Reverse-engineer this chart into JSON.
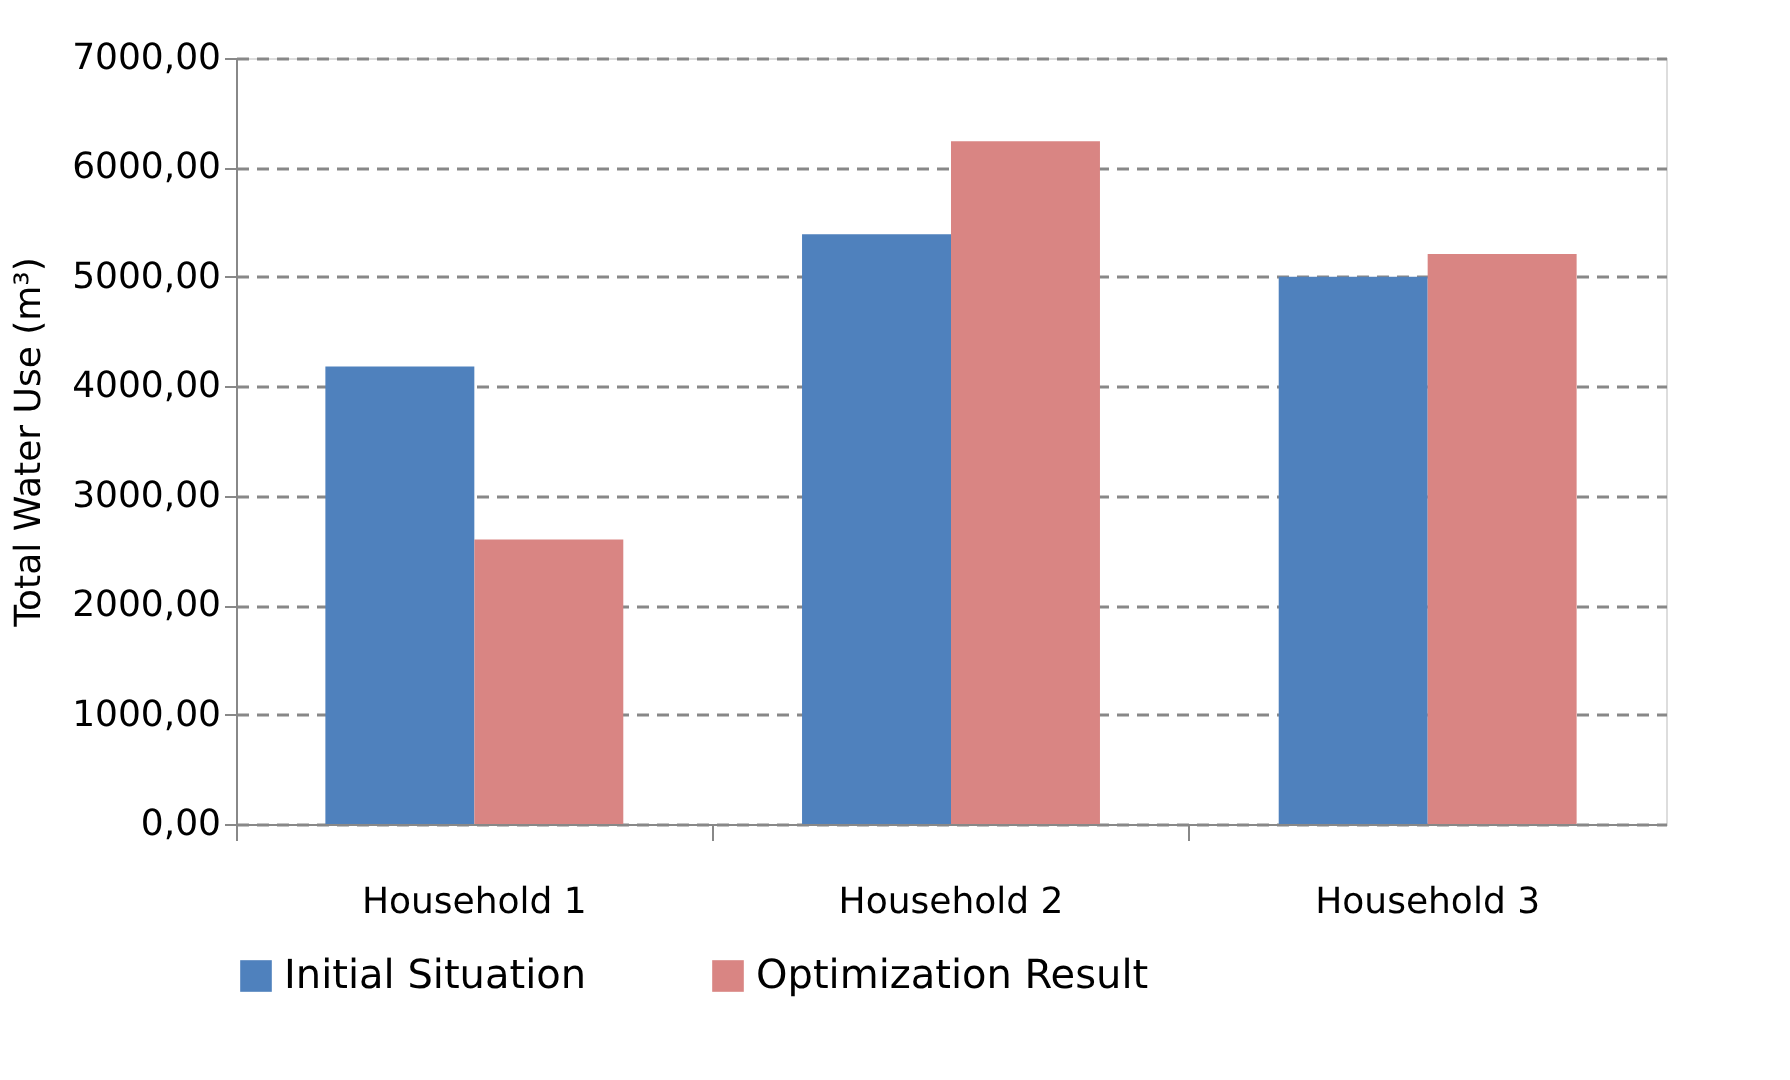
{
  "chart_data": {
    "type": "bar",
    "ylabel": "Total Water Use (m³)",
    "categories": [
      "Household 1",
      "Household 2",
      "Household 3"
    ],
    "series": [
      {
        "name": "Initial Situation",
        "color": "#4f81bd",
        "values": [
          4180,
          5390,
          5000
        ]
      },
      {
        "name": "Optimization Result",
        "color": "#d98583",
        "values": [
          2600,
          6240,
          5210
        ]
      }
    ],
    "ylim": [
      0,
      7000
    ],
    "yticks": [
      {
        "value": 0,
        "label": "0,00"
      },
      {
        "value": 1000,
        "label": "1000,00"
      },
      {
        "value": 2000,
        "label": "2000,00"
      },
      {
        "value": 3000,
        "label": "3000,00"
      },
      {
        "value": 4000,
        "label": "4000,00"
      },
      {
        "value": 5000,
        "label": "5000,00"
      },
      {
        "value": 6000,
        "label": "6000,00"
      },
      {
        "value": 7000,
        "label": "7000,00"
      }
    ],
    "grid": "y",
    "legend": "bottom"
  }
}
